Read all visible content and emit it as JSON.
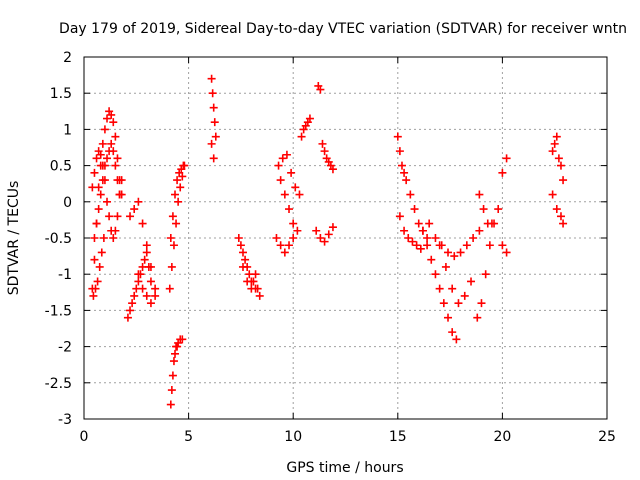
{
  "chart_data": {
    "type": "scatter",
    "title": "Day 179 of 2019, Sidereal Day-to-day VTEC variation (SDTVAR) for receiver wntn",
    "xlabel": "GPS time / hours",
    "ylabel": "SDTVAR / TECUs",
    "xlim": [
      0,
      25
    ],
    "ylim": [
      -3,
      2
    ],
    "xticks": [
      0,
      5,
      10,
      15,
      20,
      25
    ],
    "yticks": [
      -3,
      -2.5,
      -2,
      -1.5,
      -1,
      -0.5,
      0,
      0.5,
      1,
      1.5,
      2
    ],
    "xtick_labels": [
      "0",
      "5",
      "10",
      "15",
      "20",
      "25"
    ],
    "ytick_labels": [
      "-3",
      "-2.5",
      "-2",
      "-1.5",
      "-1",
      "-0.5",
      "0",
      "0.5",
      "1",
      "1.5",
      "2"
    ],
    "grid": true,
    "marker": "plus",
    "color": "#ff0000",
    "series": [
      {
        "name": "SDTVAR",
        "x": [
          0.4,
          0.5,
          0.6,
          0.7,
          0.8,
          0.9,
          1.0,
          1.1,
          1.2,
          1.3,
          1.4,
          1.5,
          1.6,
          1.7,
          1.8,
          0.5,
          0.6,
          0.7,
          0.8,
          0.9,
          1.0,
          1.1,
          1.2,
          1.3,
          1.4,
          1.5,
          1.6,
          1.7,
          0.4,
          0.5,
          0.6,
          0.7,
          0.8,
          0.9,
          1.0,
          1.1,
          1.2,
          1.3,
          1.4,
          1.5,
          1.6,
          1.7,
          1.8,
          0.45,
          0.55,
          0.65,
          0.75,
          0.85,
          0.95,
          2.1,
          2.2,
          2.3,
          2.4,
          2.5,
          2.6,
          2.7,
          2.8,
          2.9,
          3.0,
          3.1,
          3.2,
          2.2,
          2.4,
          2.6,
          2.8,
          3.0,
          3.2,
          3.4,
          2.6,
          2.8,
          3.0,
          3.2,
          3.4,
          4.15,
          4.2,
          4.25,
          4.3,
          4.35,
          4.4,
          4.45,
          4.5,
          4.6,
          4.7,
          4.1,
          4.2,
          4.3,
          4.4,
          4.5,
          4.6,
          4.7,
          4.8,
          4.15,
          4.25,
          4.35,
          4.45,
          4.55,
          4.65,
          4.75,
          6.1,
          6.15,
          6.2,
          6.25,
          6.3,
          6.1,
          6.2,
          7.4,
          7.6,
          7.8,
          8.0,
          8.2,
          8.4,
          7.5,
          7.7,
          7.9,
          8.1,
          8.3,
          7.6,
          7.8,
          8.0,
          8.2,
          9.3,
          9.5,
          9.7,
          9.9,
          10.1,
          10.3,
          9.4,
          9.6,
          9.8,
          10.0,
          9.2,
          9.4,
          9.6,
          9.8,
          10.0,
          10.2,
          10.4,
          10.5,
          10.6,
          10.7,
          10.8,
          11.2,
          11.3,
          11.4,
          11.5,
          11.6,
          11.7,
          11.8,
          11.9,
          11.1,
          11.3,
          11.5,
          11.7,
          11.9,
          15.0,
          15.1,
          15.2,
          15.3,
          15.4,
          15.6,
          15.8,
          16.0,
          16.2,
          16.4,
          15.1,
          15.3,
          15.5,
          15.7,
          15.9,
          16.1,
          16.2,
          16.4,
          16.6,
          16.8,
          17.0,
          17.2,
          17.4,
          17.6,
          17.8,
          16.5,
          16.8,
          17.1,
          17.4,
          17.7,
          18.0,
          18.3,
          18.6,
          18.9,
          17.0,
          17.3,
          17.6,
          17.9,
          18.2,
          18.5,
          18.8,
          19.0,
          19.2,
          19.4,
          19.6,
          19.8,
          20.0,
          20.2,
          18.9,
          19.1,
          19.3,
          19.5,
          20.0,
          20.2,
          22.4,
          22.5,
          22.6,
          22.7,
          22.8,
          22.9,
          22.4,
          22.6,
          22.8,
          22.9
        ],
        "y": [
          -1.2,
          -0.8,
          -0.3,
          0.2,
          0.5,
          0.8,
          1.0,
          1.15,
          1.25,
          1.2,
          1.1,
          0.9,
          0.6,
          0.3,
          0.1,
          -0.5,
          -0.3,
          -0.1,
          0.1,
          0.3,
          0.5,
          0.6,
          0.7,
          0.8,
          0.7,
          0.5,
          0.3,
          0.1,
          0.2,
          0.4,
          0.6,
          0.7,
          0.65,
          0.5,
          0.3,
          0.0,
          -0.2,
          -0.4,
          -0.5,
          -0.4,
          -0.2,
          0.1,
          0.3,
          -1.3,
          -1.2,
          -1.1,
          -0.9,
          -0.7,
          -0.5,
          -1.6,
          -1.5,
          -1.4,
          -1.3,
          -1.2,
          -1.1,
          -1.0,
          -0.9,
          -0.8,
          -0.7,
          -0.9,
          -1.1,
          -0.2,
          -0.1,
          0.0,
          -0.3,
          -0.6,
          -0.9,
          -1.2,
          -1.0,
          -1.2,
          -1.3,
          -1.4,
          -1.3,
          -2.8,
          -2.6,
          -2.4,
          -2.2,
          -2.1,
          -2.0,
          -2.0,
          -1.95,
          -1.9,
          -1.9,
          -1.2,
          -0.9,
          -0.6,
          -0.3,
          0.0,
          0.2,
          0.35,
          0.5,
          -0.5,
          -0.2,
          0.1,
          0.3,
          0.4,
          0.45,
          0.5,
          1.7,
          1.5,
          1.3,
          1.1,
          0.9,
          0.8,
          0.6,
          -0.5,
          -0.7,
          -0.9,
          -1.1,
          -1.2,
          -1.3,
          -0.6,
          -0.8,
          -1.0,
          -1.1,
          -1.2,
          -0.9,
          -1.1,
          -1.2,
          -1.0,
          0.5,
          0.6,
          0.65,
          0.4,
          0.2,
          0.1,
          0.3,
          0.1,
          -0.1,
          -0.3,
          -0.5,
          -0.6,
          -0.7,
          -0.6,
          -0.5,
          -0.4,
          0.9,
          1.0,
          1.05,
          1.1,
          1.15,
          1.6,
          1.55,
          0.8,
          0.7,
          0.6,
          0.55,
          0.5,
          0.45,
          -0.4,
          -0.5,
          -0.55,
          -0.45,
          -0.35,
          0.9,
          0.7,
          0.5,
          0.4,
          0.3,
          0.1,
          -0.1,
          -0.3,
          -0.4,
          -0.5,
          -0.2,
          -0.4,
          -0.5,
          -0.55,
          -0.6,
          -0.65,
          -0.4,
          -0.6,
          -0.8,
          -1.0,
          -1.2,
          -1.4,
          -1.6,
          -1.8,
          -1.9,
          -0.3,
          -0.5,
          -0.6,
          -0.7,
          -0.75,
          -0.7,
          -0.6,
          -0.5,
          -0.4,
          -0.6,
          -0.9,
          -1.2,
          -1.4,
          -1.3,
          -1.1,
          -1.6,
          -1.4,
          -1.0,
          -0.6,
          -0.3,
          -0.1,
          0.4,
          0.6,
          0.1,
          -0.1,
          -0.3,
          -0.3,
          -0.6,
          -0.7,
          0.7,
          0.8,
          0.9,
          0.6,
          0.5,
          0.3,
          0.1,
          -0.1,
          -0.2,
          -0.3
        ]
      }
    ]
  }
}
